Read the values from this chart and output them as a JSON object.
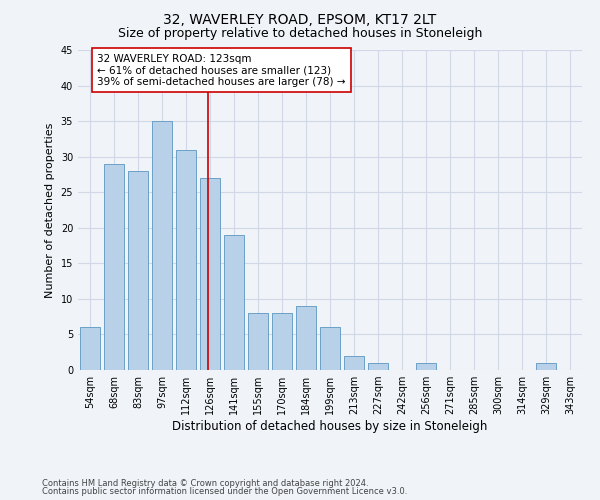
{
  "title": "32, WAVERLEY ROAD, EPSOM, KT17 2LT",
  "subtitle": "Size of property relative to detached houses in Stoneleigh",
  "xlabel_bottom": "Distribution of detached houses by size in Stoneleigh",
  "ylabel": "Number of detached properties",
  "categories": [
    "54sqm",
    "68sqm",
    "83sqm",
    "97sqm",
    "112sqm",
    "126sqm",
    "141sqm",
    "155sqm",
    "170sqm",
    "184sqm",
    "199sqm",
    "213sqm",
    "227sqm",
    "242sqm",
    "256sqm",
    "271sqm",
    "285sqm",
    "300sqm",
    "314sqm",
    "329sqm",
    "343sqm"
  ],
  "values": [
    6,
    29,
    28,
    35,
    31,
    27,
    19,
    8,
    8,
    9,
    6,
    2,
    1,
    0,
    1,
    0,
    0,
    0,
    0,
    1,
    0
  ],
  "bar_color": "#b8d0e8",
  "bar_edge_color": "#6aa0c8",
  "vline_x": 4.9,
  "vline_color": "#cc0000",
  "annotation_box_text": "32 WAVERLEY ROAD: 123sqm\n← 61% of detached houses are smaller (123)\n39% of semi-detached houses are larger (78) →",
  "annotation_box_color": "#cc0000",
  "annotation_box_fill": "#ffffff",
  "ylim": [
    0,
    45
  ],
  "yticks": [
    0,
    5,
    10,
    15,
    20,
    25,
    30,
    35,
    40,
    45
  ],
  "grid_color": "#d0d8e8",
  "background_color": "#f0f4f8",
  "footer_line1": "Contains HM Land Registry data © Crown copyright and database right 2024.",
  "footer_line2": "Contains public sector information licensed under the Open Government Licence v3.0.",
  "title_fontsize": 10,
  "subtitle_fontsize": 9,
  "tick_fontsize": 7,
  "ylabel_fontsize": 8,
  "xlabel_bottom_fontsize": 8.5,
  "annotation_fontsize": 7.5,
  "footer_fontsize": 6
}
